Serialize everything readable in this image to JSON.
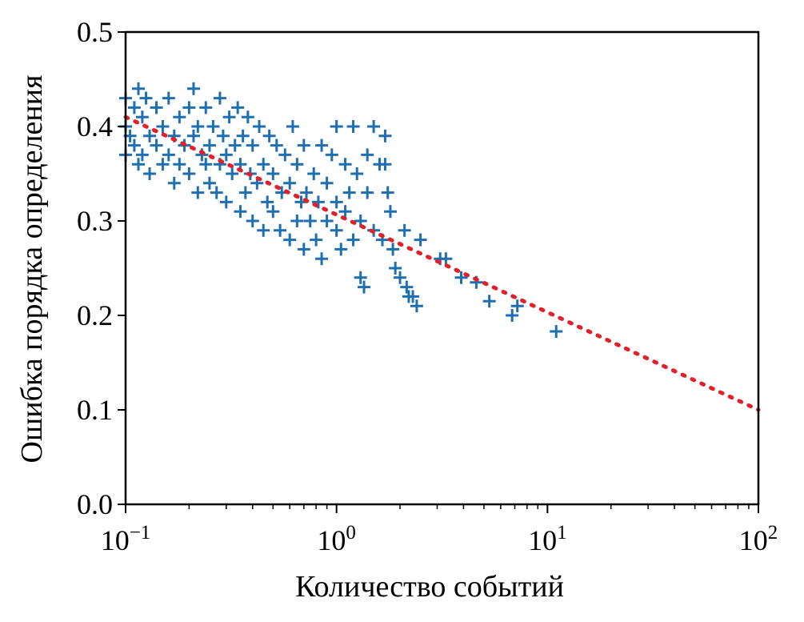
{
  "chart_data": {
    "type": "scatter",
    "title": "",
    "xlabel": "Количество событий",
    "ylabel": "Ошибка порядка определения",
    "xscale": "log",
    "xlim": [
      0.1,
      100
    ],
    "ylim": [
      0.0,
      0.5
    ],
    "xticks": [
      {
        "base": "10",
        "exp": "−1",
        "value": 0.1
      },
      {
        "base": "10",
        "exp": "0",
        "value": 1
      },
      {
        "base": "10",
        "exp": "1",
        "value": 10
      },
      {
        "base": "10",
        "exp": "2",
        "value": 100
      }
    ],
    "yticks": [
      "0.0",
      "0.1",
      "0.2",
      "0.3",
      "0.4",
      "0.5"
    ],
    "grid": false,
    "colors": {
      "points": "#1f6fb0",
      "fit": "#e0202a"
    },
    "series": [
      {
        "marker": "plus",
        "points": [
          [
            0.1,
            0.37
          ],
          [
            0.1,
            0.4
          ],
          [
            0.1,
            0.43
          ],
          [
            0.105,
            0.39
          ],
          [
            0.11,
            0.42
          ],
          [
            0.11,
            0.38
          ],
          [
            0.115,
            0.36
          ],
          [
            0.115,
            0.44
          ],
          [
            0.12,
            0.41
          ],
          [
            0.12,
            0.37
          ],
          [
            0.125,
            0.43
          ],
          [
            0.13,
            0.39
          ],
          [
            0.13,
            0.35
          ],
          [
            0.14,
            0.42
          ],
          [
            0.14,
            0.38
          ],
          [
            0.15,
            0.4
          ],
          [
            0.15,
            0.36
          ],
          [
            0.16,
            0.43
          ],
          [
            0.16,
            0.37
          ],
          [
            0.17,
            0.39
          ],
          [
            0.17,
            0.34
          ],
          [
            0.18,
            0.41
          ],
          [
            0.18,
            0.36
          ],
          [
            0.19,
            0.38
          ],
          [
            0.2,
            0.42
          ],
          [
            0.2,
            0.35
          ],
          [
            0.21,
            0.44
          ],
          [
            0.21,
            0.39
          ],
          [
            0.22,
            0.33
          ],
          [
            0.22,
            0.4
          ],
          [
            0.23,
            0.37
          ],
          [
            0.24,
            0.36
          ],
          [
            0.24,
            0.42
          ],
          [
            0.25,
            0.34
          ],
          [
            0.25,
            0.38
          ],
          [
            0.26,
            0.4
          ],
          [
            0.27,
            0.33
          ],
          [
            0.28,
            0.43
          ],
          [
            0.28,
            0.36
          ],
          [
            0.29,
            0.39
          ],
          [
            0.3,
            0.32
          ],
          [
            0.3,
            0.37
          ],
          [
            0.31,
            0.41
          ],
          [
            0.32,
            0.35
          ],
          [
            0.33,
            0.38
          ],
          [
            0.34,
            0.42
          ],
          [
            0.35,
            0.31
          ],
          [
            0.35,
            0.36
          ],
          [
            0.36,
            0.39
          ],
          [
            0.37,
            0.33
          ],
          [
            0.38,
            0.41
          ],
          [
            0.39,
            0.35
          ],
          [
            0.4,
            0.3
          ],
          [
            0.4,
            0.38
          ],
          [
            0.42,
            0.34
          ],
          [
            0.43,
            0.4
          ],
          [
            0.45,
            0.29
          ],
          [
            0.45,
            0.36
          ],
          [
            0.47,
            0.32
          ],
          [
            0.48,
            0.39
          ],
          [
            0.5,
            0.31
          ],
          [
            0.5,
            0.35
          ],
          [
            0.52,
            0.38
          ],
          [
            0.54,
            0.29
          ],
          [
            0.55,
            0.33
          ],
          [
            0.57,
            0.37
          ],
          [
            0.6,
            0.28
          ],
          [
            0.6,
            0.34
          ],
          [
            0.62,
            0.4
          ],
          [
            0.65,
            0.3
          ],
          [
            0.65,
            0.36
          ],
          [
            0.68,
            0.32
          ],
          [
            0.7,
            0.27
          ],
          [
            0.7,
            0.38
          ],
          [
            0.72,
            0.33
          ],
          [
            0.75,
            0.3
          ],
          [
            0.78,
            0.35
          ],
          [
            0.8,
            0.28
          ],
          [
            0.82,
            0.32
          ],
          [
            0.85,
            0.38
          ],
          [
            0.85,
            0.26
          ],
          [
            0.9,
            0.3
          ],
          [
            0.9,
            0.34
          ],
          [
            0.95,
            0.37
          ],
          [
            1.0,
            0.29
          ],
          [
            1.0,
            0.32
          ],
          [
            1.0,
            0.4
          ],
          [
            1.05,
            0.27
          ],
          [
            1.1,
            0.36
          ],
          [
            1.1,
            0.31
          ],
          [
            1.15,
            0.33
          ],
          [
            1.2,
            0.28
          ],
          [
            1.2,
            0.4
          ],
          [
            1.25,
            0.35
          ],
          [
            1.3,
            0.24
          ],
          [
            1.3,
            0.3
          ],
          [
            1.35,
            0.23
          ],
          [
            1.4,
            0.37
          ],
          [
            1.4,
            0.33
          ],
          [
            1.5,
            0.4
          ],
          [
            1.5,
            0.29
          ],
          [
            1.6,
            0.36
          ],
          [
            1.65,
            0.28
          ],
          [
            1.7,
            0.39
          ],
          [
            1.7,
            0.36
          ],
          [
            1.75,
            0.33
          ],
          [
            1.8,
            0.31
          ],
          [
            1.85,
            0.27
          ],
          [
            1.9,
            0.25
          ],
          [
            2.0,
            0.24
          ],
          [
            2.1,
            0.29
          ],
          [
            2.15,
            0.23
          ],
          [
            2.2,
            0.22
          ],
          [
            2.3,
            0.22
          ],
          [
            2.4,
            0.21
          ],
          [
            2.5,
            0.28
          ],
          [
            3.1,
            0.26
          ],
          [
            3.3,
            0.26
          ],
          [
            3.9,
            0.24
          ],
          [
            4.6,
            0.235
          ],
          [
            5.3,
            0.215
          ],
          [
            6.8,
            0.2
          ],
          [
            7.2,
            0.21
          ],
          [
            11.0,
            0.183
          ]
        ]
      }
    ],
    "fit_line": {
      "x": [
        0.1,
        100
      ],
      "y": [
        0.41,
        0.1
      ]
    }
  }
}
